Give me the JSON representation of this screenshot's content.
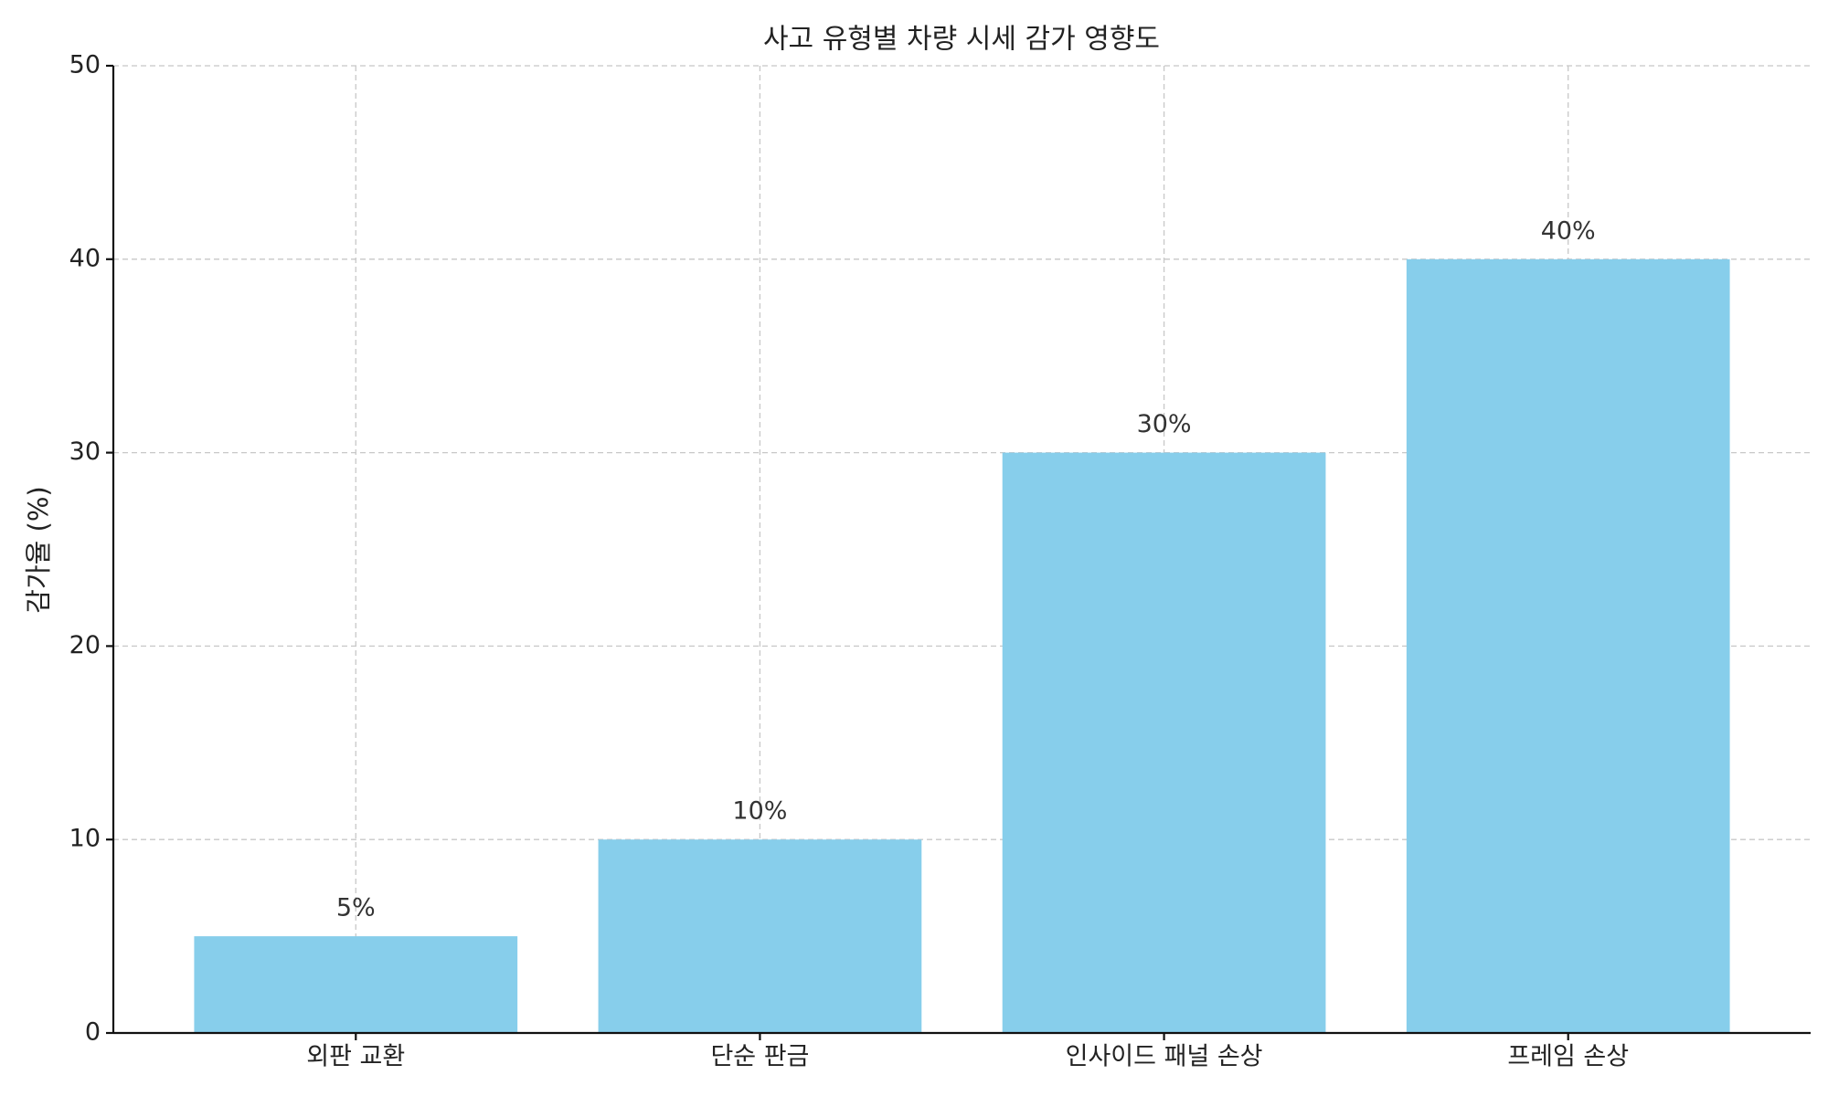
{
  "chart_data": {
    "type": "bar",
    "title": "사고 유형별 차량 시세 감가 영향도",
    "ylabel": "감가율 (%)",
    "categories": [
      "외판 교환",
      "단순 판금",
      "인사이드 패널 손상",
      "프레임 손상"
    ],
    "values": [
      5,
      10,
      30,
      40
    ],
    "value_labels": [
      "5%",
      "10%",
      "30%",
      "40%"
    ],
    "color": "#87ceeb",
    "ylim": [
      0,
      50
    ],
    "yticks": [
      0,
      10,
      20,
      30,
      40,
      50
    ],
    "grid": true
  }
}
